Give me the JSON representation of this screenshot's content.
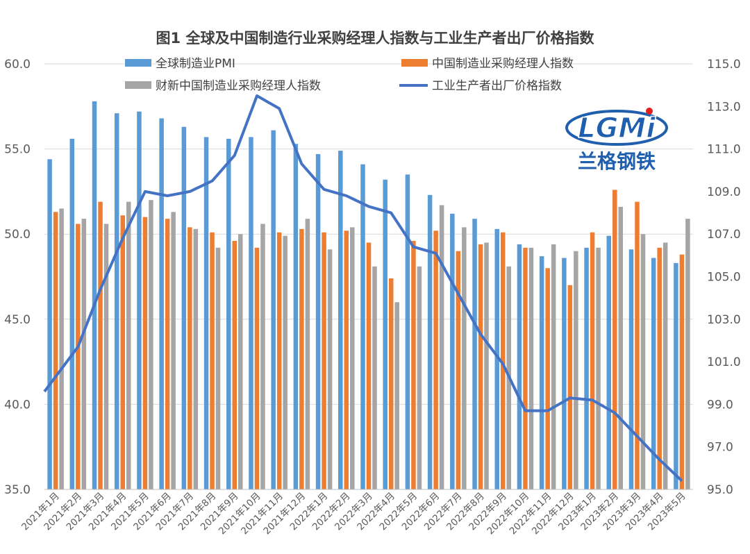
{
  "chart_data": {
    "type": "bar",
    "title": "图1 全球及中国制造行业采购经理人指数与工业生产者出厂价格指数",
    "categories": [
      "2021年1月",
      "2021年2月",
      "2021年3月",
      "2021年4月",
      "2021年5月",
      "2021年6月",
      "2021年7月",
      "2021年8月",
      "2021年9月",
      "2021年10月",
      "2021年11月",
      "2021年12月",
      "2022年1月",
      "2022年2月",
      "2022年3月",
      "2022年4月",
      "2022年5月",
      "2022年6月",
      "2022年7月",
      "2022年8月",
      "2022年9月",
      "2022年10月",
      "2022年11月",
      "2022年12月",
      "2023年1月",
      "2023年2月",
      "2023年3月",
      "2023年4月",
      "2023年5月"
    ],
    "ylim": [
      35.0,
      60.0
    ],
    "y2lim": [
      95.0,
      115.0
    ],
    "yticks": [
      "35.0",
      "40.0",
      "45.0",
      "50.0",
      "55.0",
      "60.0"
    ],
    "y2ticks": [
      "95.0",
      "97.0",
      "99.0",
      "101.0",
      "103.0",
      "105.0",
      "107.0",
      "109.0",
      "111.0",
      "113.0",
      "115.0"
    ],
    "series": [
      {
        "name": "全球制造业PMI",
        "type": "bar",
        "axis": "left",
        "color": "#5b9bd5",
        "values": [
          54.4,
          55.6,
          57.8,
          57.1,
          57.2,
          56.8,
          56.3,
          55.7,
          55.6,
          55.7,
          56.1,
          55.3,
          54.7,
          54.9,
          54.1,
          53.2,
          53.5,
          52.3,
          51.2,
          50.9,
          50.3,
          49.4,
          48.7,
          48.6,
          49.2,
          49.9,
          49.1,
          48.6,
          48.3
        ]
      },
      {
        "name": "中国制造业采购经理人指数",
        "type": "bar",
        "axis": "left",
        "color": "#ed7d31",
        "values": [
          51.3,
          50.6,
          51.9,
          51.1,
          51.0,
          50.9,
          50.4,
          50.1,
          49.6,
          49.2,
          50.1,
          50.3,
          50.1,
          50.2,
          49.5,
          47.4,
          49.6,
          50.2,
          49.0,
          49.4,
          50.1,
          49.2,
          48.0,
          47.0,
          50.1,
          52.6,
          51.9,
          49.2,
          48.8
        ]
      },
      {
        "name": "财新中国制造业采购经理人指数",
        "type": "bar",
        "axis": "left",
        "color": "#a5a5a5",
        "values": [
          51.5,
          50.9,
          50.6,
          51.9,
          52.0,
          51.3,
          50.3,
          49.2,
          50.0,
          50.6,
          49.9,
          50.9,
          49.1,
          50.4,
          48.1,
          46.0,
          48.1,
          51.7,
          50.4,
          49.5,
          48.1,
          49.2,
          49.4,
          49.0,
          49.2,
          51.6,
          50.0,
          49.5,
          50.9
        ]
      },
      {
        "name": "工业生产者出厂价格指数",
        "type": "line",
        "axis": "right",
        "color": "#4472c4",
        "values": [
          100.3,
          101.7,
          104.4,
          106.8,
          109.0,
          108.8,
          109.0,
          109.5,
          110.7,
          113.5,
          112.9,
          110.3,
          109.1,
          108.8,
          108.3,
          108.0,
          106.4,
          106.1,
          104.2,
          102.3,
          100.9,
          98.7,
          98.7,
          99.3,
          99.2,
          98.6,
          97.5,
          96.4,
          95.4
        ]
      }
    ],
    "grid": true,
    "legend": "top"
  },
  "logo": {
    "text": "LGMi",
    "subtitle": "兰格钢铁"
  }
}
